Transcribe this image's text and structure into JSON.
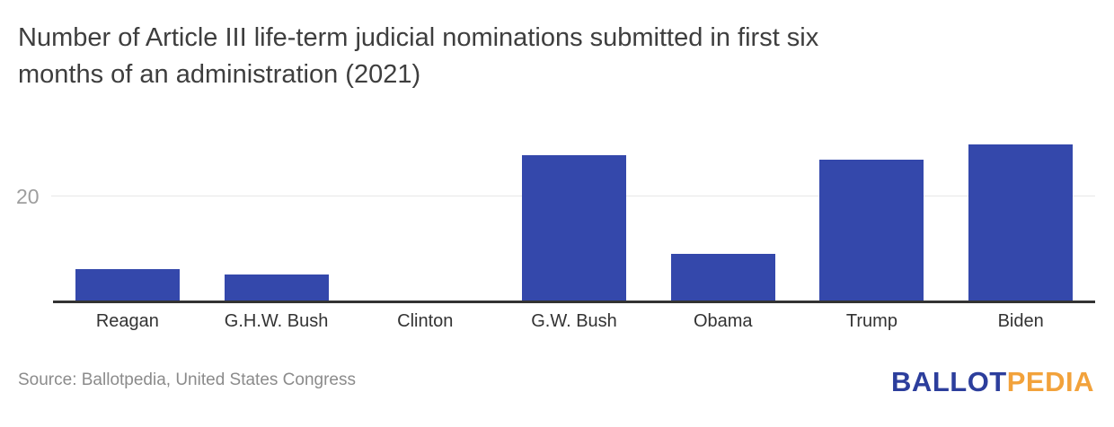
{
  "header": {
    "title_line1": "Number of Article III life-term judicial nominations submitted in first six",
    "title_line2": "months of an administration (2021)"
  },
  "chart_data": {
    "type": "bar",
    "title": "Number of Article III life-term judicial nominations submitted in first six months of an administration (2021)",
    "categories": [
      "Reagan",
      "G.H.W. Bush",
      "Clinton",
      "G.W. Bush",
      "Obama",
      "Trump",
      "Biden"
    ],
    "values": [
      6,
      5,
      0,
      28,
      9,
      27,
      30
    ],
    "xlabel": "",
    "ylabel": "",
    "ylim": [
      0,
      32
    ],
    "yticks": [
      20
    ],
    "grid": "single horizontal gridline at value 20",
    "legend": "none",
    "bar_color": "#3448ab",
    "axis_color": "#333333",
    "gridline_color": "#e7e7e7",
    "tick_label_color": "#9e9e9e",
    "category_label_color": "#333333"
  },
  "y_axis": {
    "tick_label": "20"
  },
  "footer": {
    "source": "Source: Ballotpedia, United States Congress",
    "logo": {
      "ballot": "BALLOT",
      "pedia": "PEDIA",
      "ballot_color": "#2c3e9c",
      "pedia_color": "#f2a23b"
    }
  }
}
